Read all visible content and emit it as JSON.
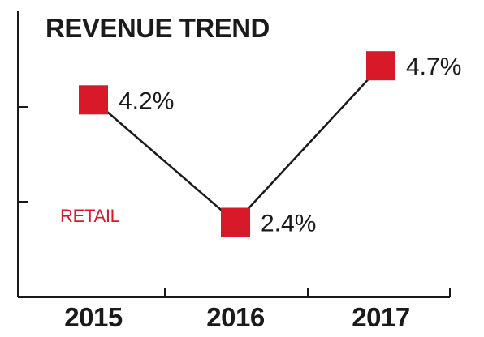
{
  "chart_data": {
    "type": "line",
    "title": "REVENUE TREND",
    "annotation": "RETAIL",
    "categories": [
      "2015",
      "2016",
      "2017"
    ],
    "series": [
      {
        "values": [
          4.2,
          2.4,
          4.7
        ],
        "labels": [
          "4.2%",
          "2.4%",
          "4.7%"
        ]
      }
    ],
    "ylim": [
      1.3,
      5.5
    ],
    "grid": false,
    "legend": "none",
    "colors": {
      "marker": "#d7192a",
      "line": "#1a1a1a",
      "text": "#1a1a1a",
      "annotation": "#d7192a"
    }
  }
}
